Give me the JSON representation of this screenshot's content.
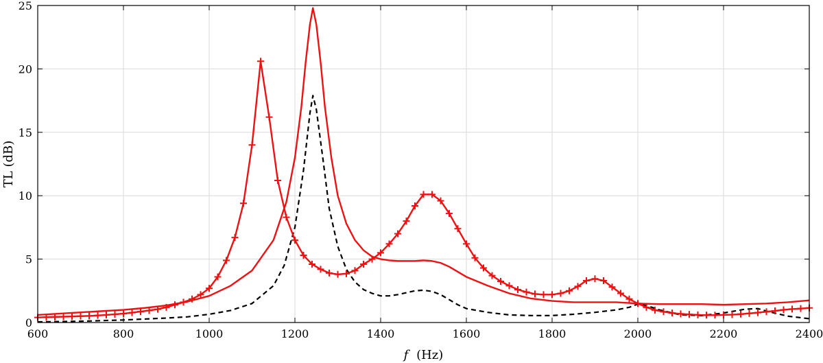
{
  "chart_data": {
    "type": "line",
    "title": "",
    "xlabel_var": "f",
    "xlabel_unit": "(Hz)",
    "ylabel": "TL (dB)",
    "xlim": [
      600,
      2400
    ],
    "ylim": [
      0,
      25
    ],
    "xticks": [
      600,
      800,
      1000,
      1200,
      1400,
      1600,
      1800,
      2000,
      2200,
      2400
    ],
    "yticks": [
      0,
      5,
      10,
      15,
      20,
      25
    ],
    "grid": true,
    "colors": {
      "red": "#ee1111",
      "black": "#000000",
      "grid": "#d9d9d9"
    },
    "series": [
      {
        "style": "dashed",
        "color": "#000000",
        "marker": "none",
        "x": [
          600,
          700,
          800,
          900,
          950,
          1000,
          1050,
          1100,
          1150,
          1175,
          1200,
          1220,
          1235,
          1242,
          1250,
          1265,
          1280,
          1300,
          1320,
          1340,
          1360,
          1380,
          1400,
          1420,
          1440,
          1460,
          1480,
          1500,
          1520,
          1540,
          1560,
          1580,
          1600,
          1650,
          1700,
          1750,
          1800,
          1850,
          1900,
          1950,
          1980,
          2000,
          2020,
          2050,
          2100,
          2150,
          2200,
          2250,
          2280,
          2300,
          2350,
          2400
        ],
        "y": [
          0.05,
          0.1,
          0.2,
          0.35,
          0.45,
          0.65,
          0.95,
          1.5,
          2.9,
          4.5,
          7.5,
          12.0,
          16.5,
          17.9,
          16.8,
          13.0,
          9.0,
          6.0,
          4.2,
          3.2,
          2.6,
          2.3,
          2.1,
          2.1,
          2.2,
          2.35,
          2.5,
          2.55,
          2.45,
          2.2,
          1.8,
          1.4,
          1.1,
          0.8,
          0.6,
          0.55,
          0.55,
          0.65,
          0.8,
          1.0,
          1.2,
          1.45,
          1.35,
          1.0,
          0.6,
          0.55,
          0.75,
          1.05,
          1.1,
          0.9,
          0.5,
          0.3
        ]
      },
      {
        "style": "solid",
        "color": "#ee1111",
        "marker": "none",
        "x": [
          600,
          650,
          700,
          750,
          800,
          850,
          900,
          950,
          1000,
          1050,
          1100,
          1150,
          1180,
          1200,
          1215,
          1225,
          1235,
          1242,
          1250,
          1260,
          1270,
          1285,
          1300,
          1320,
          1340,
          1360,
          1380,
          1400,
          1420,
          1440,
          1460,
          1480,
          1500,
          1520,
          1540,
          1560,
          1580,
          1600,
          1650,
          1700,
          1750,
          1800,
          1850,
          1900,
          1950,
          2000,
          2050,
          2100,
          2150,
          2200,
          2250,
          2300,
          2350,
          2400
        ],
        "y": [
          0.6,
          0.7,
          0.8,
          0.9,
          1.0,
          1.15,
          1.35,
          1.65,
          2.1,
          2.9,
          4.1,
          6.5,
          9.5,
          13.0,
          17.0,
          20.5,
          23.5,
          24.8,
          23.5,
          20.5,
          17.0,
          13.0,
          10.0,
          7.8,
          6.5,
          5.7,
          5.2,
          5.0,
          4.9,
          4.85,
          4.85,
          4.85,
          4.9,
          4.85,
          4.7,
          4.4,
          4.0,
          3.6,
          2.9,
          2.3,
          1.9,
          1.7,
          1.6,
          1.6,
          1.6,
          1.5,
          1.45,
          1.45,
          1.45,
          1.4,
          1.45,
          1.5,
          1.6,
          1.75
        ]
      },
      {
        "style": "solid",
        "color": "#ee1111",
        "marker": "plus",
        "x": [
          600,
          620,
          640,
          660,
          680,
          700,
          720,
          740,
          760,
          780,
          800,
          820,
          840,
          860,
          880,
          900,
          920,
          940,
          960,
          980,
          1000,
          1020,
          1040,
          1060,
          1080,
          1100,
          1120,
          1140,
          1160,
          1180,
          1200,
          1220,
          1240,
          1260,
          1280,
          1300,
          1320,
          1340,
          1360,
          1380,
          1400,
          1420,
          1440,
          1460,
          1480,
          1500,
          1520,
          1540,
          1560,
          1580,
          1600,
          1620,
          1640,
          1660,
          1680,
          1700,
          1720,
          1740,
          1760,
          1780,
          1800,
          1820,
          1840,
          1860,
          1880,
          1900,
          1920,
          1940,
          1960,
          1980,
          2000,
          2020,
          2040,
          2060,
          2080,
          2100,
          2120,
          2140,
          2160,
          2180,
          2200,
          2220,
          2240,
          2260,
          2280,
          2300,
          2320,
          2340,
          2360,
          2380,
          2400
        ],
        "y": [
          0.4,
          0.42,
          0.44,
          0.46,
          0.48,
          0.5,
          0.52,
          0.56,
          0.6,
          0.65,
          0.7,
          0.78,
          0.86,
          0.95,
          1.05,
          1.2,
          1.4,
          1.6,
          1.85,
          2.2,
          2.7,
          3.6,
          4.9,
          6.7,
          9.4,
          14.0,
          20.6,
          16.2,
          11.2,
          8.3,
          6.5,
          5.3,
          4.6,
          4.2,
          3.9,
          3.8,
          3.85,
          4.1,
          4.6,
          5.0,
          5.5,
          6.2,
          7.0,
          8.0,
          9.2,
          10.1,
          10.1,
          9.6,
          8.6,
          7.4,
          6.2,
          5.1,
          4.3,
          3.7,
          3.25,
          2.9,
          2.6,
          2.4,
          2.25,
          2.2,
          2.2,
          2.3,
          2.5,
          2.85,
          3.3,
          3.45,
          3.3,
          2.8,
          2.3,
          1.85,
          1.5,
          1.2,
          0.98,
          0.85,
          0.75,
          0.68,
          0.64,
          0.6,
          0.58,
          0.58,
          0.6,
          0.62,
          0.66,
          0.72,
          0.78,
          0.85,
          0.92,
          1.0,
          1.06,
          1.1,
          1.15
        ]
      }
    ]
  }
}
